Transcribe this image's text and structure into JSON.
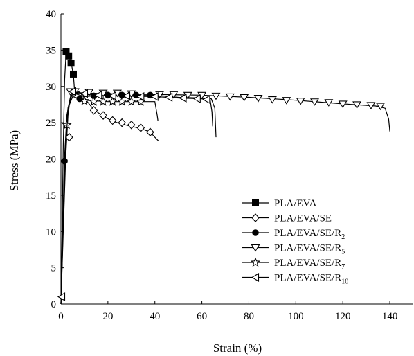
{
  "chart_data": {
    "type": "line",
    "xlabel": "Strain (%)",
    "ylabel": "Stress (MPa)",
    "xlim": [
      0,
      150
    ],
    "ylim": [
      0,
      40
    ],
    "xticks": [
      0,
      20,
      40,
      60,
      80,
      100,
      120,
      140
    ],
    "yticks": [
      0,
      5,
      10,
      15,
      20,
      25,
      30,
      35,
      40
    ],
    "legend_position": "lower-right",
    "series": [
      {
        "name": "PLA/EVA",
        "marker": "square-filled",
        "line": [
          [
            0,
            0
          ],
          [
            0.5,
            10
          ],
          [
            1,
            22
          ],
          [
            1.6,
            31
          ],
          [
            2.2,
            34.8
          ],
          [
            3.2,
            34.3
          ],
          [
            4.4,
            33.2
          ],
          [
            5.3,
            31.6
          ],
          [
            6,
            28.5
          ]
        ],
        "markers": [
          [
            2.2,
            34.8
          ],
          [
            3.3,
            34.2
          ],
          [
            4.3,
            33.2
          ],
          [
            5.3,
            31.7
          ]
        ]
      },
      {
        "name": "PLA/EVA/SE",
        "marker": "diamond-open",
        "line": [
          [
            0,
            0
          ],
          [
            1,
            10
          ],
          [
            2,
            20
          ],
          [
            3,
            26
          ],
          [
            4,
            28.5
          ],
          [
            6,
            29.5
          ],
          [
            8,
            29.2
          ],
          [
            11,
            28
          ],
          [
            14,
            26.8
          ],
          [
            18,
            25.9
          ],
          [
            22,
            25.2
          ],
          [
            26,
            24.8
          ],
          [
            30,
            24.5
          ],
          [
            34,
            24.2
          ],
          [
            38,
            23.7
          ],
          [
            40,
            23
          ],
          [
            41.5,
            22.5
          ]
        ],
        "markers": [
          [
            3.5,
            23
          ],
          [
            14,
            26.7
          ],
          [
            18,
            26
          ],
          [
            22,
            25.3
          ],
          [
            26,
            25
          ],
          [
            30,
            24.7
          ],
          [
            34,
            24.3
          ],
          [
            38,
            23.7
          ]
        ]
      },
      {
        "name": "PLA/EVA/SE/R2",
        "marker": "circle-filled",
        "line": [
          [
            0,
            0
          ],
          [
            0.7,
            10
          ],
          [
            1.5,
            20
          ],
          [
            2.5,
            26
          ],
          [
            4,
            28.5
          ],
          [
            6,
            29
          ],
          [
            10,
            28.6
          ],
          [
            20,
            28.8
          ],
          [
            30,
            28.8
          ],
          [
            40,
            28.8
          ],
          [
            50,
            28.5
          ],
          [
            60,
            28.4
          ],
          [
            64,
            28.3
          ],
          [
            65.5,
            27
          ],
          [
            66,
            23
          ]
        ],
        "markers": [
          [
            1.5,
            19.7
          ],
          [
            8,
            28.3
          ],
          [
            14,
            28.7
          ],
          [
            20,
            28.8
          ],
          [
            26,
            28.8
          ],
          [
            32,
            28.8
          ],
          [
            38,
            28.8
          ]
        ]
      },
      {
        "name": "PLA/EVA/SE/R5",
        "marker": "triangle-down-open",
        "line": [
          [
            0,
            0
          ],
          [
            1,
            12
          ],
          [
            2,
            22
          ],
          [
            3,
            27
          ],
          [
            5,
            29.2
          ],
          [
            10,
            29.1
          ],
          [
            20,
            29
          ],
          [
            40,
            28.9
          ],
          [
            60,
            28.8
          ],
          [
            80,
            28.5
          ],
          [
            100,
            28.1
          ],
          [
            120,
            27.6
          ],
          [
            134,
            27.3
          ],
          [
            138,
            27
          ],
          [
            139.5,
            25.5
          ],
          [
            140,
            23.8
          ]
        ],
        "markers": [
          [
            4,
            29.3
          ],
          [
            6,
            29.3
          ],
          [
            12,
            29.2
          ],
          [
            18,
            29.1
          ],
          [
            24,
            29.1
          ],
          [
            30,
            29
          ],
          [
            42,
            28.9
          ],
          [
            48,
            28.9
          ],
          [
            54,
            28.8
          ],
          [
            60,
            28.8
          ],
          [
            66,
            28.7
          ],
          [
            72,
            28.6
          ],
          [
            78,
            28.5
          ],
          [
            84,
            28.4
          ],
          [
            90,
            28.2
          ],
          [
            96,
            28.1
          ],
          [
            102,
            28
          ],
          [
            108,
            27.9
          ],
          [
            114,
            27.8
          ],
          [
            120,
            27.6
          ],
          [
            126,
            27.5
          ],
          [
            132,
            27.4
          ],
          [
            136,
            27.3
          ]
        ]
      },
      {
        "name": "PLA/EVA/SE/R7",
        "marker": "star-open",
        "line": [
          [
            0,
            0
          ],
          [
            1,
            12
          ],
          [
            2,
            22
          ],
          [
            3,
            27
          ],
          [
            5,
            28.6
          ],
          [
            10,
            28.1
          ],
          [
            20,
            27.9
          ],
          [
            30,
            27.9
          ],
          [
            40,
            27.9
          ],
          [
            41,
            26
          ],
          [
            41.3,
            25.3
          ]
        ],
        "markers": [
          [
            2.5,
            24.7
          ],
          [
            10,
            28
          ],
          [
            14,
            27.9
          ],
          [
            18,
            27.9
          ],
          [
            22,
            27.9
          ],
          [
            26,
            27.9
          ],
          [
            30,
            27.9
          ],
          [
            34,
            27.9
          ]
        ]
      },
      {
        "name": "PLA/EVA/SE/R10",
        "marker": "triangle-left-open",
        "line": [
          [
            0,
            0
          ],
          [
            1,
            11
          ],
          [
            2,
            21
          ],
          [
            3,
            27
          ],
          [
            4.5,
            29.2
          ],
          [
            10,
            28.9
          ],
          [
            20,
            28.7
          ],
          [
            40,
            28.6
          ],
          [
            50,
            28.4
          ],
          [
            60,
            28.3
          ],
          [
            63.5,
            28.2
          ],
          [
            64.3,
            26.5
          ],
          [
            64.6,
            24.5
          ]
        ],
        "markers": [
          [
            0.3,
            1
          ],
          [
            5,
            29.3
          ],
          [
            10,
            29
          ],
          [
            16,
            28.8
          ],
          [
            22,
            28.7
          ],
          [
            28,
            28.7
          ],
          [
            34,
            28.6
          ],
          [
            40,
            28.6
          ],
          [
            46,
            28.5
          ],
          [
            52,
            28.4
          ],
          [
            58,
            28.3
          ],
          [
            62,
            28.2
          ]
        ]
      }
    ]
  },
  "legend": {
    "entries": [
      {
        "base": "PLA/EVA",
        "sub": ""
      },
      {
        "base": "PLA/EVA/SE",
        "sub": ""
      },
      {
        "base": "PLA/EVA/SE/R",
        "sub": "2"
      },
      {
        "base": "PLA/EVA/SE/R",
        "sub": "5"
      },
      {
        "base": "PLA/EVA/SE/R",
        "sub": "7"
      },
      {
        "base": "PLA/EVA/SE/R",
        "sub": "10"
      }
    ]
  }
}
